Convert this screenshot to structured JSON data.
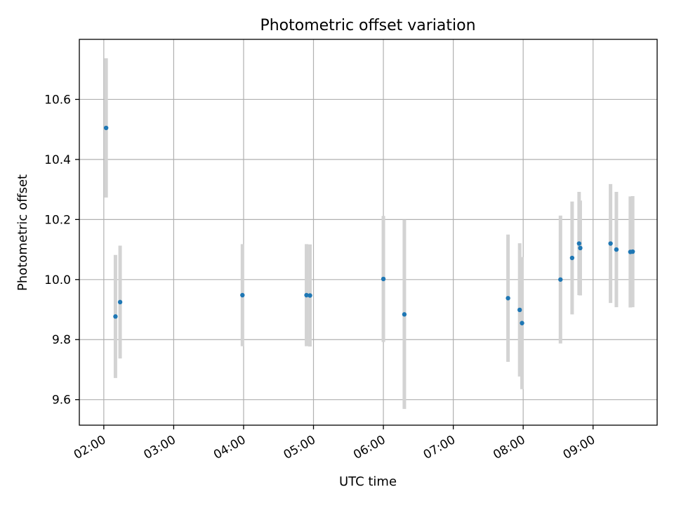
{
  "chart_data": {
    "type": "scatter",
    "title": "Photometric offset variation",
    "xlabel": "UTC time",
    "ylabel": "Photometric offset",
    "x_axis_type": "time",
    "xlim": [
      "01:39",
      "09:55"
    ],
    "ylim": [
      9.515,
      10.8
    ],
    "xticks": [
      "02:00",
      "03:00",
      "04:00",
      "05:00",
      "06:00",
      "07:00",
      "08:00",
      "09:00"
    ],
    "yticks": [
      9.6,
      9.8,
      10.0,
      10.2,
      10.4,
      10.6
    ],
    "ytick_labels": [
      "9.6",
      "9.8",
      "10.0",
      "10.2",
      "10.4",
      "10.6"
    ],
    "grid": true,
    "legend": "none",
    "series": [
      {
        "marker_color": "#1f77b4",
        "errorbar_color": "#d3d3d3",
        "points": [
          {
            "x": "02:02",
            "y": 10.505,
            "yerr": 0.232
          },
          {
            "x": "02:10",
            "y": 9.877,
            "yerr": 0.205
          },
          {
            "x": "02:14",
            "y": 9.925,
            "yerr": 0.188
          },
          {
            "x": "03:59",
            "y": 9.948,
            "yerr": 0.17
          },
          {
            "x": "04:54",
            "y": 9.948,
            "yerr": 0.17
          },
          {
            "x": "04:57",
            "y": 9.947,
            "yerr": 0.17
          },
          {
            "x": "06:00",
            "y": 10.002,
            "yerr": 0.21
          },
          {
            "x": "06:18",
            "y": 9.884,
            "yerr": 0.315
          },
          {
            "x": "07:47",
            "y": 9.938,
            "yerr": 0.212
          },
          {
            "x": "07:57",
            "y": 9.899,
            "yerr": 0.222
          },
          {
            "x": "07:59",
            "y": 9.855,
            "yerr": 0.22
          },
          {
            "x": "08:32",
            "y": 10.0,
            "yerr": 0.213
          },
          {
            "x": "08:42",
            "y": 10.072,
            "yerr": 0.188
          },
          {
            "x": "08:48",
            "y": 10.12,
            "yerr": 0.172
          },
          {
            "x": "08:49",
            "y": 10.105,
            "yerr": 0.158
          },
          {
            "x": "09:15",
            "y": 10.12,
            "yerr": 0.198
          },
          {
            "x": "09:20",
            "y": 10.1,
            "yerr": 0.192
          },
          {
            "x": "09:32",
            "y": 10.092,
            "yerr": 0.185
          },
          {
            "x": "09:34",
            "y": 10.093,
            "yerr": 0.185
          }
        ]
      }
    ]
  }
}
